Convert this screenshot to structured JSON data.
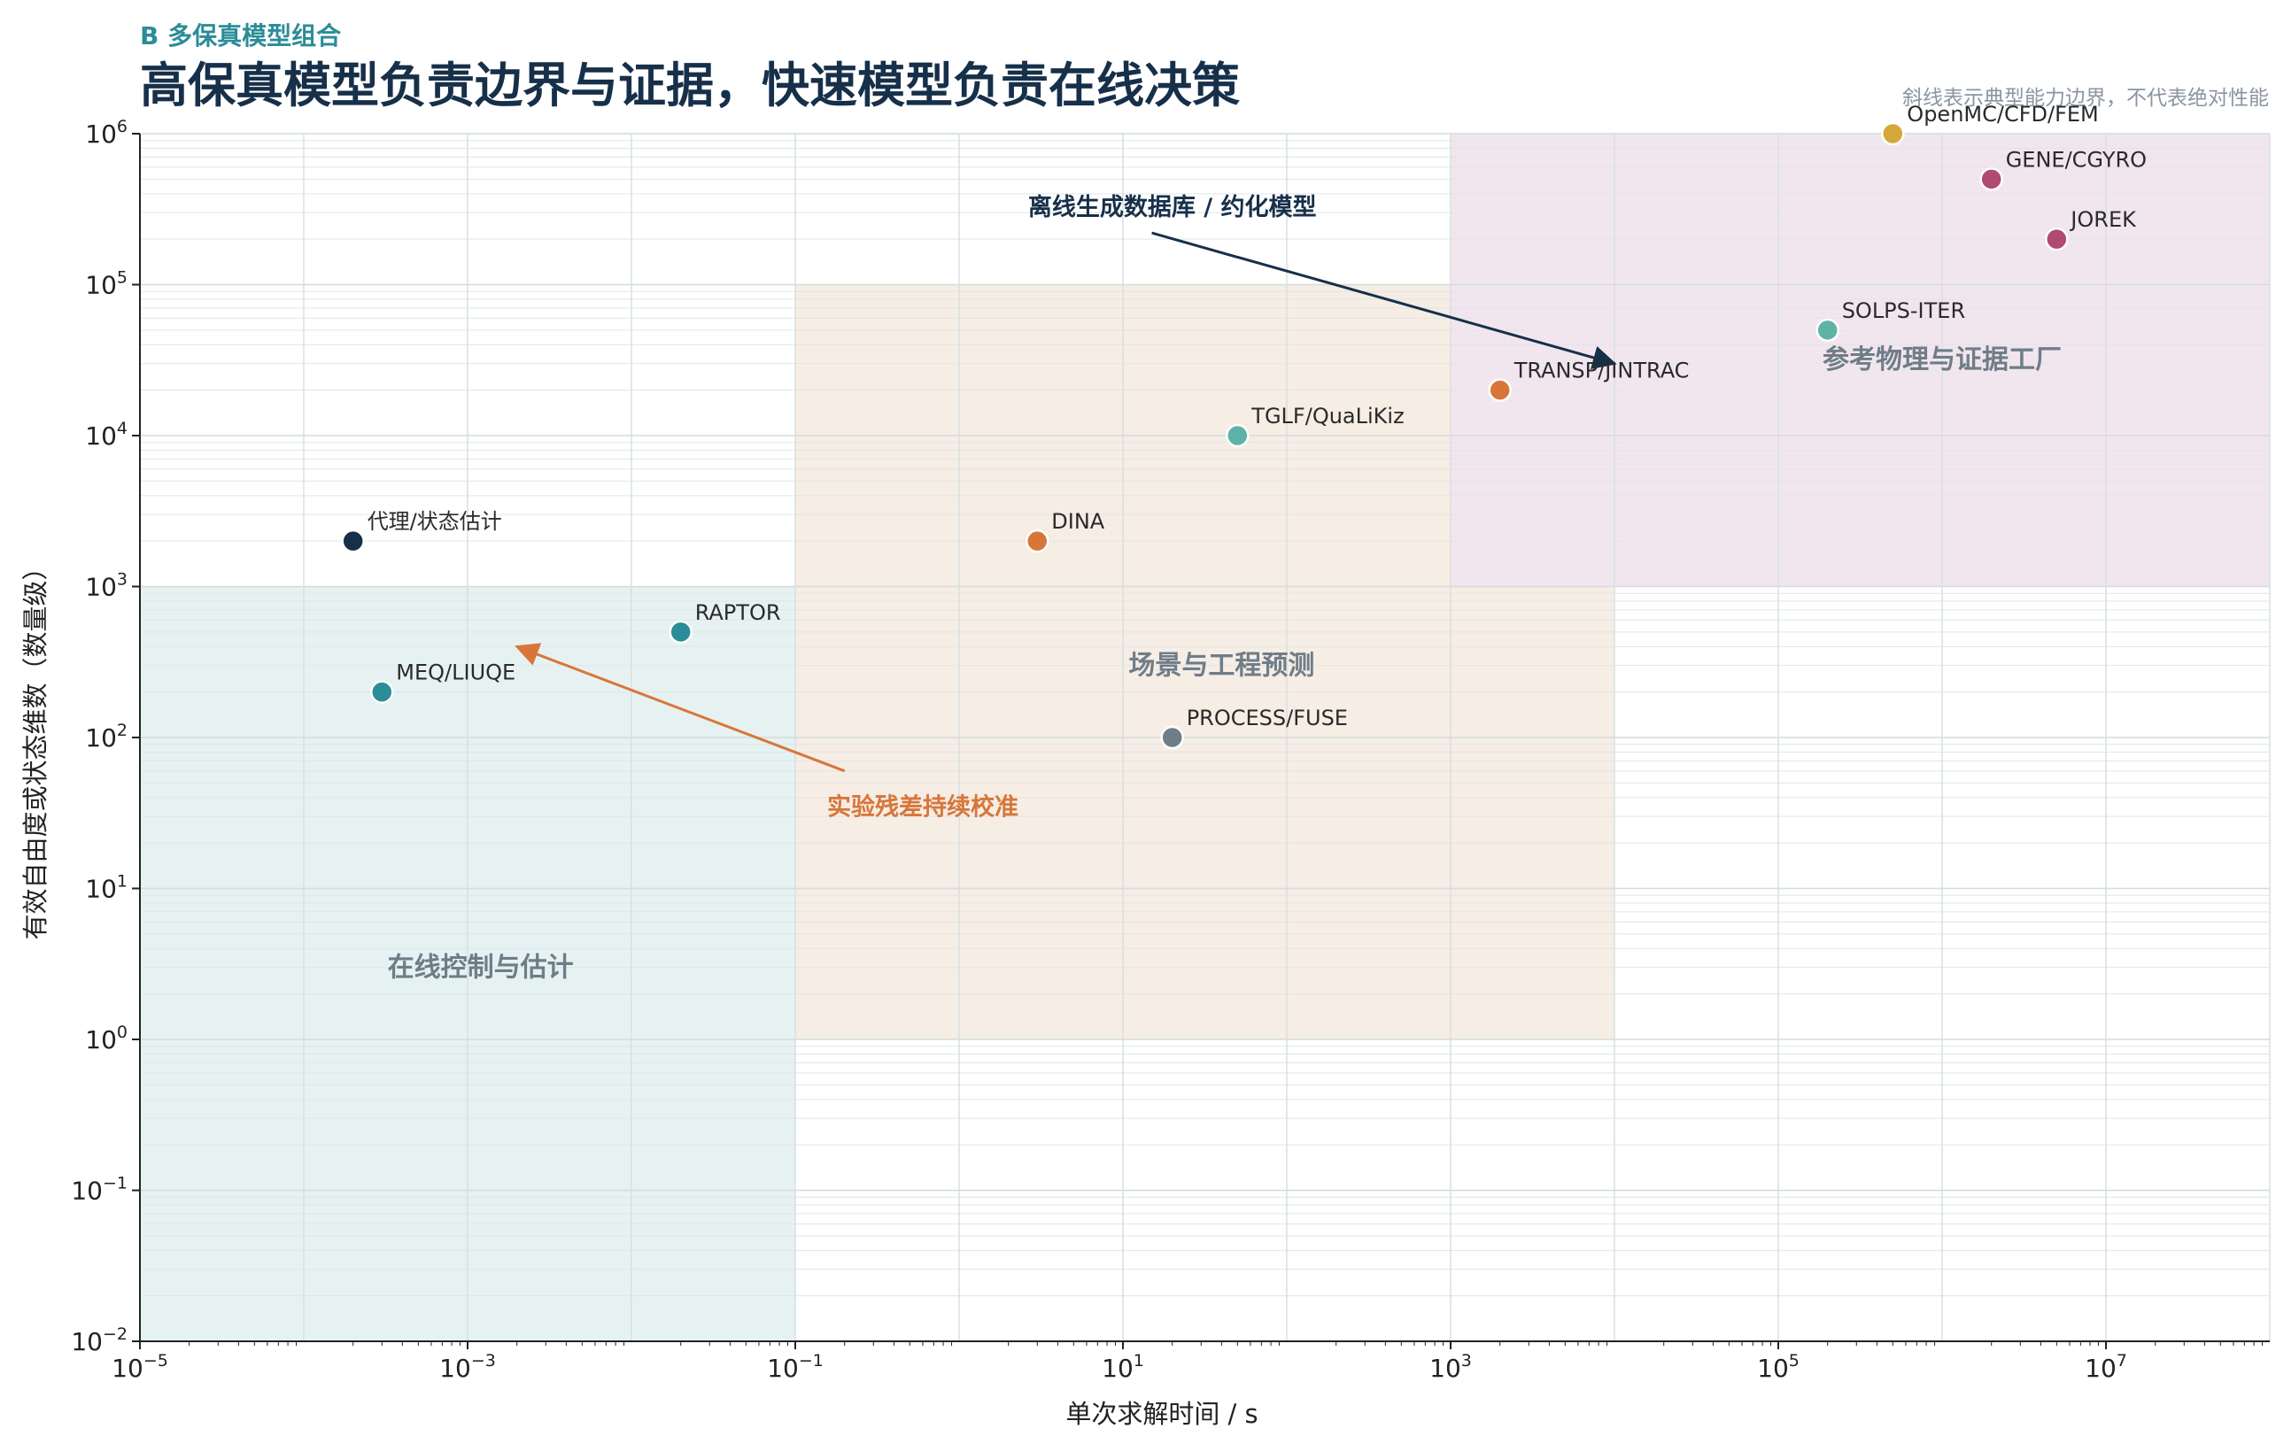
{
  "panel_label": "B  多保真模型组合",
  "title": "高保真模型负责边界与证据，快速模型负责在线决策",
  "note": "斜线表示典型能力边界，不代表绝对性能",
  "chart_data": {
    "type": "scatter",
    "xlabel": "单次求解时间 / s",
    "ylabel": "有效自由度或状态维数（数量级）",
    "xscale": "log",
    "yscale": "log",
    "xlim": [
      1e-05,
      100000000.0
    ],
    "ylim": [
      0.01,
      1000000.0
    ],
    "x_ticks": [
      {
        "value": 1e-05,
        "base": "10",
        "exp": "−5"
      },
      {
        "value": 0.001,
        "base": "10",
        "exp": "−3"
      },
      {
        "value": 0.1,
        "base": "10",
        "exp": "−1"
      },
      {
        "value": 10.0,
        "base": "10",
        "exp": "1"
      },
      {
        "value": 1000.0,
        "base": "10",
        "exp": "3"
      },
      {
        "value": 100000.0,
        "base": "10",
        "exp": "5"
      },
      {
        "value": 10000000.0,
        "base": "10",
        "exp": "7"
      }
    ],
    "y_ticks": [
      {
        "value": 0.01,
        "base": "10",
        "exp": "−2"
      },
      {
        "value": 0.1,
        "base": "10",
        "exp": "−1"
      },
      {
        "value": 1.0,
        "base": "10",
        "exp": "0"
      },
      {
        "value": 10.0,
        "base": "10",
        "exp": "1"
      },
      {
        "value": 100.0,
        "base": "10",
        "exp": "2"
      },
      {
        "value": 1000.0,
        "base": "10",
        "exp": "3"
      },
      {
        "value": 10000.0,
        "base": "10",
        "exp": "4"
      },
      {
        "value": 100000.0,
        "base": "10",
        "exp": "5"
      },
      {
        "value": 1000000.0,
        "base": "10",
        "exp": "6"
      }
    ],
    "grid": true,
    "regions": [
      {
        "label": "在线控制与估计",
        "x": [
          1e-05,
          0.1
        ],
        "y": [
          0.01,
          1000.0
        ],
        "color": "#e6f2f1",
        "label_at": [
          0.0012,
          3
        ]
      },
      {
        "label": "场景与工程预测",
        "x": [
          0.1,
          10000.0
        ],
        "y": [
          1.0,
          100000.0
        ],
        "color": "#f6ede5",
        "label_at": [
          40,
          300
        ]
      },
      {
        "label": "参考物理与证据工厂",
        "x": [
          1000.0,
          100000000.0
        ],
        "y": [
          1000.0,
          1000000.0
        ],
        "color": "#f2e6ee",
        "label_at": [
          1000000.0,
          32000.0
        ]
      }
    ],
    "points": [
      {
        "name": "代理/状态估计",
        "x": 0.0002,
        "y": 2000,
        "color": "#17304a"
      },
      {
        "name": "MEQ/LIUQE",
        "x": 0.0003,
        "y": 200,
        "color": "#2a8d98"
      },
      {
        "name": "RAPTOR",
        "x": 0.02,
        "y": 500,
        "color": "#2a8d98"
      },
      {
        "name": "DINA",
        "x": 3,
        "y": 2000,
        "color": "#d8763a"
      },
      {
        "name": "PROCESS/FUSE",
        "x": 20,
        "y": 100,
        "color": "#6f7d88"
      },
      {
        "name": "TGLF/QuaLiKiz",
        "x": 50,
        "y": 10000,
        "color": "#5fb3a6"
      },
      {
        "name": "TRANSP/JINTRAC",
        "x": 2000,
        "y": 20000,
        "color": "#d8763a"
      },
      {
        "name": "OpenMC/CFD/FEM",
        "x": 500000,
        "y": 1000000,
        "color": "#d4a83a"
      },
      {
        "name": "SOLPS-ITER",
        "x": 200000,
        "y": 50000,
        "color": "#5fb3a6"
      },
      {
        "name": "GENE/CGYRO",
        "x": 2000000,
        "y": 500000,
        "color": "#b04a72"
      },
      {
        "name": "JOREK",
        "x": 5000000,
        "y": 200000,
        "color": "#b04a72"
      }
    ],
    "annotations": [
      {
        "text": "离线生成数据库 / 约化模型",
        "text_at": [
          20,
          330000.0
        ],
        "from": [
          15,
          220000.0
        ],
        "to": [
          10000,
          30000
        ],
        "color": "#17304a"
      },
      {
        "text": "实验残差持续校准",
        "text_at": [
          0.6,
          35
        ],
        "from": [
          0.2,
          60
        ],
        "to": [
          0.002,
          400
        ],
        "color": "#d8763a"
      }
    ]
  }
}
